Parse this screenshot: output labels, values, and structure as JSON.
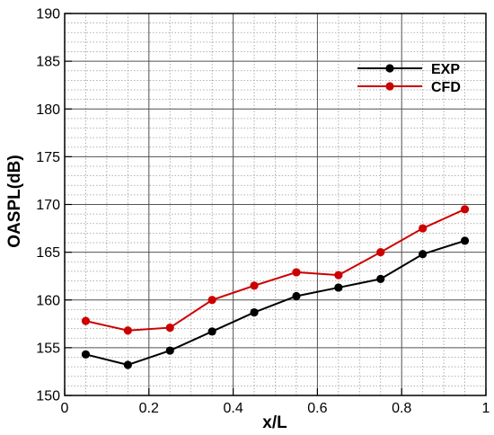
{
  "chart_data": {
    "type": "line",
    "xlabel": "x/L",
    "ylabel": "OASPL(dB)",
    "xlim": [
      0,
      1
    ],
    "ylim": [
      150,
      190
    ],
    "x_ticks": [
      0,
      0.2,
      0.4,
      0.6,
      0.8,
      1
    ],
    "x_tick_labels": [
      "0",
      "0.2",
      "0.4",
      "0.6",
      "0.8",
      "1"
    ],
    "y_ticks": [
      150,
      155,
      160,
      165,
      170,
      175,
      180,
      185,
      190
    ],
    "y_tick_labels": [
      "150",
      "155",
      "160",
      "165",
      "170",
      "175",
      "180",
      "185",
      "190"
    ],
    "grid": true,
    "legend_position": "top-right",
    "x": [
      0.05,
      0.15,
      0.25,
      0.35,
      0.45,
      0.55,
      0.65,
      0.75,
      0.85,
      0.95
    ],
    "series": [
      {
        "name": "EXP",
        "color": "#000000",
        "values": [
          154.3,
          153.2,
          154.7,
          156.7,
          158.7,
          160.4,
          161.3,
          162.2,
          164.8,
          166.2
        ]
      },
      {
        "name": "CFD",
        "color": "#cc0000",
        "values": [
          157.8,
          156.8,
          157.1,
          160.0,
          161.5,
          162.9,
          162.6,
          165.0,
          167.5,
          169.5
        ]
      }
    ]
  }
}
